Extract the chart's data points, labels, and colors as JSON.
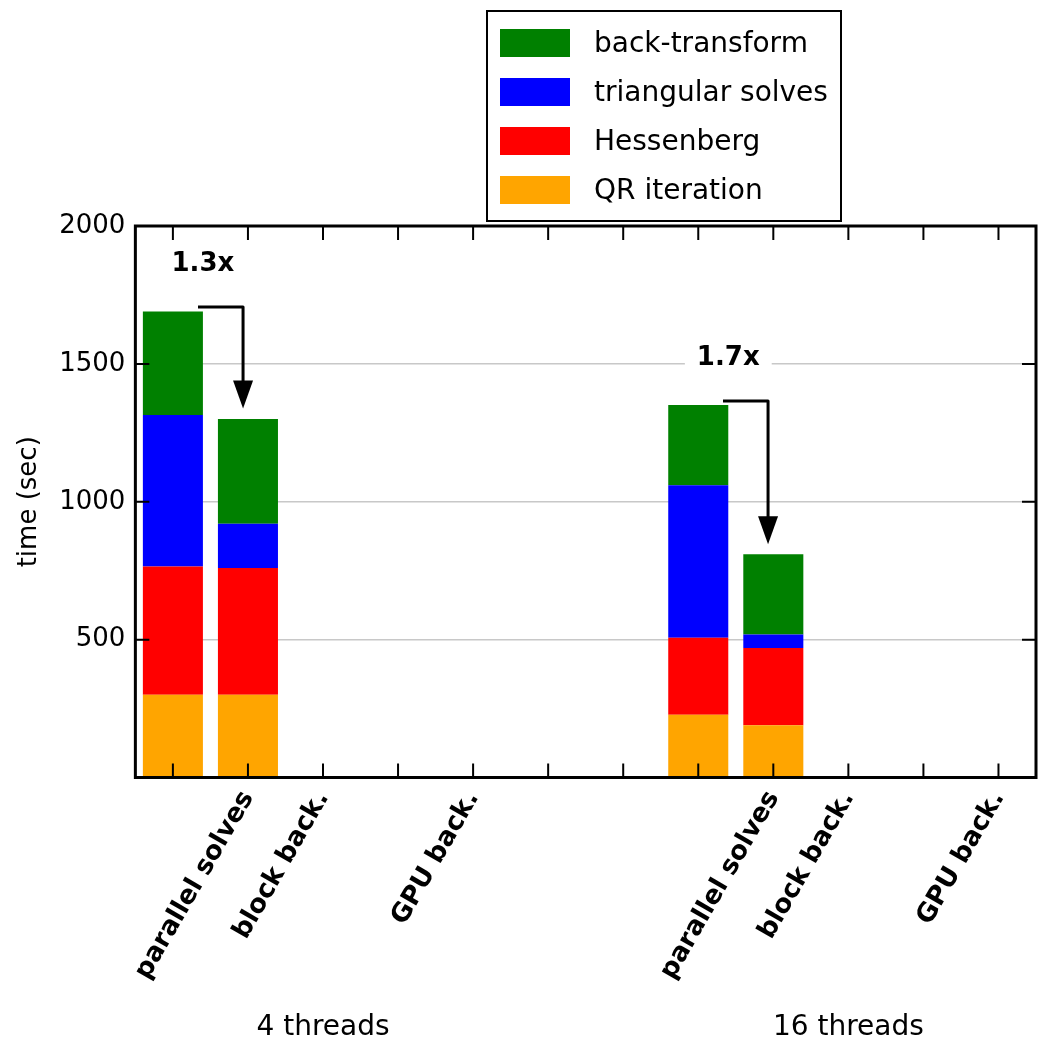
{
  "chart_data": {
    "type": "bar",
    "stacked": true,
    "ylabel": "time (sec)",
    "categories": [
      null,
      "parallel solves",
      "block back.",
      null,
      "GPU back.",
      null,
      null,
      null,
      "parallel solves",
      "block back.",
      null,
      "GPU back."
    ],
    "series": [
      {
        "name": "QR iteration",
        "color": "#ffa500",
        "values": [
          300,
          300,
          null,
          null,
          null,
          null,
          null,
          228,
          190,
          null,
          null,
          null
        ]
      },
      {
        "name": "Hessenberg",
        "color": "#ff0000",
        "values": [
          465,
          460,
          null,
          null,
          null,
          null,
          null,
          279,
          280,
          null,
          null,
          null
        ]
      },
      {
        "name": "triangular solves",
        "color": "#0000ff",
        "values": [
          550,
          160,
          null,
          null,
          null,
          null,
          null,
          553,
          49,
          null,
          null,
          null
        ]
      },
      {
        "name": "back-transform",
        "color": "#008000",
        "values": [
          375,
          380,
          null,
          null,
          null,
          null,
          null,
          291,
          291,
          null,
          null,
          null
        ]
      }
    ],
    "ylim": [
      0,
      2000
    ],
    "yticks": [
      {
        "value": 0,
        "label": null
      },
      500,
      1000,
      1500,
      2000
    ],
    "grid": "y",
    "legend": "top",
    "annotations": [
      "1.3x",
      "1.7x",
      "4 threads",
      "16 threads"
    ]
  }
}
